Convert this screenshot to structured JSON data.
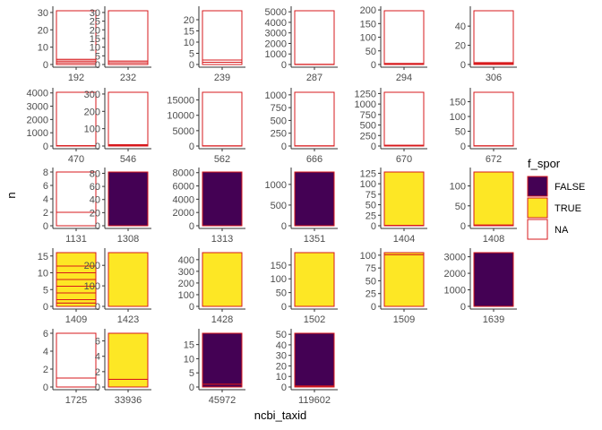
{
  "chart_data": {
    "type": "bar",
    "subtype": "faceted stacked bar (facet_wrap, free y scales)",
    "xlabel": "ncbi_taxid",
    "ylabel": "n",
    "grid": false,
    "legend": {
      "title": "f_spor",
      "position": "right",
      "entries": [
        {
          "label": "FALSE",
          "color": "#440154"
        },
        {
          "label": "TRUE",
          "color": "#FDE725"
        },
        {
          "label": "NA",
          "color": "#FFFFFF"
        }
      ],
      "outline_color": "#D7191C"
    },
    "facets": [
      {
        "label": "192",
        "ymax": 31,
        "ticks": [
          "0",
          "10",
          "20",
          "30"
        ],
        "ticks_at": [
          0,
          10,
          20,
          30
        ],
        "segments": [
          {
            "fill": "NA",
            "height": 1
          },
          {
            "fill": "NA",
            "height": 1
          },
          {
            "fill": "NA",
            "height": 1
          },
          {
            "fill": "NA",
            "height": 28
          }
        ]
      },
      {
        "label": "232",
        "ymax": 31,
        "ticks": [
          "0",
          "5",
          "10",
          "15",
          "20",
          "25",
          "30"
        ],
        "ticks_at": [
          0,
          5,
          10,
          15,
          20,
          25,
          30
        ],
        "segments": [
          {
            "fill": "NA",
            "height": 1
          },
          {
            "fill": "NA",
            "height": 1
          },
          {
            "fill": "NA",
            "height": 29
          }
        ]
      },
      {
        "label": "239",
        "ymax": 24,
        "ticks": [
          "0",
          "5",
          "10",
          "15",
          "20"
        ],
        "ticks_at": [
          0,
          5,
          10,
          15,
          20
        ],
        "segments": [
          {
            "fill": "NA",
            "height": 1
          },
          {
            "fill": "NA",
            "height": 1
          },
          {
            "fill": "NA",
            "height": 22
          }
        ]
      },
      {
        "label": "287",
        "ymax": 5100,
        "ticks": [
          "0",
          "1000",
          "2000",
          "3000",
          "4000",
          "5000"
        ],
        "ticks_at": [
          0,
          1000,
          2000,
          3000,
          4000,
          5000
        ],
        "segments": [
          {
            "fill": "NA",
            "height": 20
          },
          {
            "fill": "NA",
            "height": 5080
          }
        ]
      },
      {
        "label": "294",
        "ymax": 197,
        "ticks": [
          "0",
          "50",
          "100",
          "150",
          "200"
        ],
        "ticks_at": [
          0,
          50,
          100,
          150,
          200
        ],
        "segments": [
          {
            "fill": "NA",
            "height": 2
          },
          {
            "fill": "NA",
            "height": 2
          },
          {
            "fill": "NA",
            "height": 193
          }
        ]
      },
      {
        "label": "306",
        "ymax": 56,
        "ticks": [
          "0",
          "20",
          "40"
        ],
        "ticks_at": [
          0,
          20,
          40
        ],
        "segments": [
          {
            "fill": "NA",
            "height": 1
          },
          {
            "fill": "NA",
            "height": 1
          },
          {
            "fill": "NA",
            "height": 54
          }
        ]
      },
      {
        "label": "470",
        "ymax": 4050,
        "ticks": [
          "0",
          "1000",
          "2000",
          "3000",
          "4000"
        ],
        "ticks_at": [
          0,
          1000,
          2000,
          3000,
          4000
        ],
        "segments": [
          {
            "fill": "NA",
            "height": 30
          },
          {
            "fill": "NA",
            "height": 4020
          }
        ]
      },
      {
        "label": "546",
        "ymax": 310,
        "ticks": [
          "0",
          "100",
          "200",
          "300"
        ],
        "ticks_at": [
          0,
          100,
          200,
          300
        ],
        "segments": [
          {
            "fill": "NA",
            "height": 4
          },
          {
            "fill": "NA",
            "height": 4
          },
          {
            "fill": "NA",
            "height": 302
          }
        ]
      },
      {
        "label": "562",
        "ymax": 17500,
        "ticks": [
          "0",
          "5000",
          "10000",
          "15000"
        ],
        "ticks_at": [
          0,
          5000,
          10000,
          15000
        ],
        "segments": [
          {
            "fill": "NA",
            "height": 80
          },
          {
            "fill": "NA",
            "height": 17420
          }
        ]
      },
      {
        "label": "666",
        "ymax": 1050,
        "ticks": [
          "0",
          "250",
          "500",
          "750",
          "1000"
        ],
        "ticks_at": [
          0,
          250,
          500,
          750,
          1000
        ],
        "segments": [
          {
            "fill": "NA",
            "height": 5
          },
          {
            "fill": "NA",
            "height": 1045
          }
        ]
      },
      {
        "label": "670",
        "ymax": 1280,
        "ticks": [
          "0",
          "250",
          "500",
          "750",
          "1000",
          "1250"
        ],
        "ticks_at": [
          0,
          250,
          500,
          750,
          1000,
          1250
        ],
        "segments": [
          {
            "fill": "NA",
            "height": 10
          },
          {
            "fill": "NA",
            "height": 10
          },
          {
            "fill": "NA",
            "height": 1260
          }
        ]
      },
      {
        "label": "672",
        "ymax": 182,
        "ticks": [
          "0",
          "50",
          "100",
          "150"
        ],
        "ticks_at": [
          0,
          50,
          100,
          150
        ],
        "segments": [
          {
            "fill": "NA",
            "height": 1
          },
          {
            "fill": "NA",
            "height": 181
          }
        ]
      },
      {
        "label": "1131",
        "ymax": 8,
        "ticks": [
          "0",
          "2",
          "4",
          "6",
          "8"
        ],
        "ticks_at": [
          0,
          2,
          4,
          6,
          8
        ],
        "segments": [
          {
            "fill": "NA",
            "height": 2
          },
          {
            "fill": "NA",
            "height": 6
          }
        ]
      },
      {
        "label": "1308",
        "ymax": 82,
        "ticks": [
          "0",
          "20",
          "40",
          "60",
          "80"
        ],
        "ticks_at": [
          0,
          20,
          40,
          60,
          80
        ],
        "segments": [
          {
            "fill": "FALSE",
            "height": 82
          }
        ]
      },
      {
        "label": "1313",
        "ymax": 8100,
        "ticks": [
          "0",
          "2000",
          "4000",
          "6000",
          "8000"
        ],
        "ticks_at": [
          0,
          2000,
          4000,
          6000,
          8000
        ],
        "segments": [
          {
            "fill": "FALSE",
            "height": 8100
          }
        ]
      },
      {
        "label": "1351",
        "ymax": 1300,
        "ticks": [
          "0",
          "500",
          "1000"
        ],
        "ticks_at": [
          0,
          500,
          1000
        ],
        "segments": [
          {
            "fill": "FALSE",
            "height": 1300
          }
        ]
      },
      {
        "label": "1404",
        "ymax": 128,
        "ticks": [
          "0",
          "25",
          "50",
          "75",
          "100",
          "125"
        ],
        "ticks_at": [
          0,
          25,
          50,
          75,
          100,
          125
        ],
        "segments": [
          {
            "fill": "TRUE",
            "height": 1
          },
          {
            "fill": "TRUE",
            "height": 127
          }
        ]
      },
      {
        "label": "1408",
        "ymax": 135,
        "ticks": [
          "0",
          "50",
          "100"
        ],
        "ticks_at": [
          0,
          50,
          100
        ],
        "segments": [
          {
            "fill": "TRUE",
            "height": 2
          },
          {
            "fill": "TRUE",
            "height": 133
          }
        ]
      },
      {
        "label": "1409",
        "ymax": 16,
        "ticks": [
          "0",
          "5",
          "10",
          "15"
        ],
        "ticks_at": [
          0,
          5,
          10,
          15
        ],
        "segments": [
          {
            "fill": "TRUE",
            "height": 1
          },
          {
            "fill": "TRUE",
            "height": 1
          },
          {
            "fill": "TRUE",
            "height": 2
          },
          {
            "fill": "TRUE",
            "height": 2
          },
          {
            "fill": "TRUE",
            "height": 2
          },
          {
            "fill": "TRUE",
            "height": 2
          },
          {
            "fill": "TRUE",
            "height": 2
          },
          {
            "fill": "TRUE",
            "height": 4
          }
        ]
      },
      {
        "label": "1423",
        "ymax": 262,
        "ticks": [
          "0",
          "100",
          "200"
        ],
        "ticks_at": [
          0,
          100,
          200
        ],
        "segments": [
          {
            "fill": "TRUE",
            "height": 262
          }
        ]
      },
      {
        "label": "1428",
        "ymax": 460,
        "ticks": [
          "0",
          "100",
          "200",
          "300",
          "400"
        ],
        "ticks_at": [
          0,
          100,
          200,
          300,
          400
        ],
        "segments": [
          {
            "fill": "TRUE",
            "height": 460
          }
        ]
      },
      {
        "label": "1502",
        "ymax": 195,
        "ticks": [
          "0",
          "50",
          "100",
          "150"
        ],
        "ticks_at": [
          0,
          50,
          100,
          150
        ],
        "segments": [
          {
            "fill": "TRUE",
            "height": 195
          }
        ]
      },
      {
        "label": "1509",
        "ymax": 105,
        "ticks": [
          "0",
          "25",
          "50",
          "75",
          "100"
        ],
        "ticks_at": [
          0,
          25,
          50,
          75,
          100
        ],
        "segments": [
          {
            "fill": "TRUE",
            "height": 101
          },
          {
            "fill": "TRUE",
            "height": 4
          }
        ]
      },
      {
        "label": "1639",
        "ymax": 3250,
        "ticks": [
          "0",
          "1000",
          "2000",
          "3000"
        ],
        "ticks_at": [
          0,
          1000,
          2000,
          3000
        ],
        "segments": [
          {
            "fill": "FALSE",
            "height": 3250
          }
        ]
      },
      {
        "label": "1725",
        "ymax": 6,
        "ticks": [
          "0",
          "2",
          "4",
          "6"
        ],
        "ticks_at": [
          0,
          2,
          4,
          6
        ],
        "segments": [
          {
            "fill": "NA",
            "height": 1
          },
          {
            "fill": "NA",
            "height": 5
          }
        ]
      },
      {
        "label": "33936",
        "ymax": 7,
        "ticks": [
          "0",
          "2",
          "4",
          "6"
        ],
        "ticks_at": [
          0,
          2,
          4,
          6
        ],
        "segments": [
          {
            "fill": "TRUE",
            "height": 1
          },
          {
            "fill": "TRUE",
            "height": 6
          }
        ]
      },
      {
        "label": "45972",
        "ymax": 19,
        "ticks": [
          "0",
          "5",
          "10",
          "15"
        ],
        "ticks_at": [
          0,
          5,
          10,
          15
        ],
        "segments": [
          {
            "fill": "FALSE",
            "height": 1
          },
          {
            "fill": "FALSE",
            "height": 18
          }
        ]
      },
      {
        "label": "119602",
        "ymax": 51,
        "ticks": [
          "0",
          "10",
          "20",
          "30",
          "40",
          "50"
        ],
        "ticks_at": [
          0,
          10,
          20,
          30,
          40,
          50
        ],
        "segments": [
          {
            "fill": "FALSE",
            "height": 1
          },
          {
            "fill": "FALSE",
            "height": 50
          }
        ]
      }
    ]
  }
}
